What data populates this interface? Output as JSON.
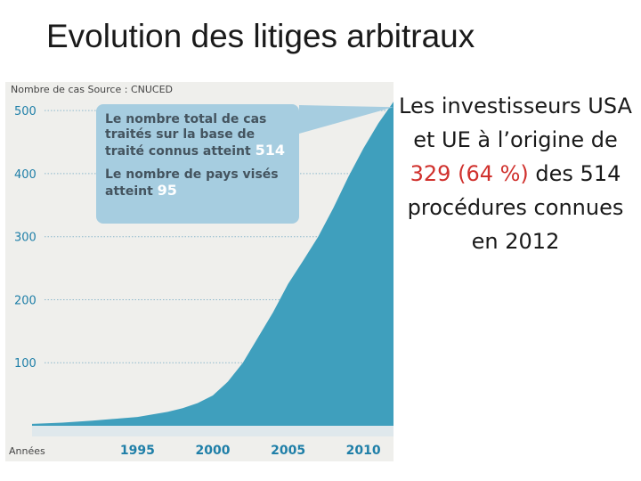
{
  "slide": {
    "title": "Evolution des litiges arbitraux"
  },
  "callout": {
    "line1_text": "Le nombre total de cas traités sur la base de traité connus atteint",
    "line1_value": "514",
    "line2_text": "Le nombre de pays visés atteint",
    "line2_value": "95"
  },
  "side_text": {
    "part1": "Les investisseurs USA et UE à l’origine de",
    "highlight1": "329",
    "highlight2": "(64 %)",
    "part2": "des 514 procédures connues en 2012"
  },
  "colors": {
    "area": "#3f9fbd",
    "panel_bg": "#efefec",
    "callout_bg": "#a6cde0",
    "tick_label": "#1f7fa8",
    "highlight": "#d0312d"
  },
  "chart_data": {
    "type": "area",
    "title": "",
    "ylabel": "Nombre de cas",
    "source_label": "Source : CNUCED",
    "xlabel": "Années",
    "x_ticks": [
      1995,
      2000,
      2005,
      2010
    ],
    "y_ticks": [
      100,
      200,
      300,
      400,
      500
    ],
    "xlim": [
      1988,
      2012
    ],
    "ylim": [
      0,
      520
    ],
    "grid": "horizontal-dotted",
    "series": [
      {
        "x": [
          1988,
          1990,
          1992,
          1994,
          1995,
          1996,
          1997,
          1998,
          1999,
          2000,
          2001,
          2002,
          2003,
          2004,
          2005,
          2006,
          2007,
          2008,
          2009,
          2010,
          2011,
          2012
        ],
        "values": [
          3,
          5,
          8,
          12,
          14,
          18,
          22,
          28,
          36,
          48,
          70,
          100,
          140,
          180,
          225,
          262,
          300,
          345,
          395,
          440,
          480,
          514
        ]
      }
    ]
  }
}
